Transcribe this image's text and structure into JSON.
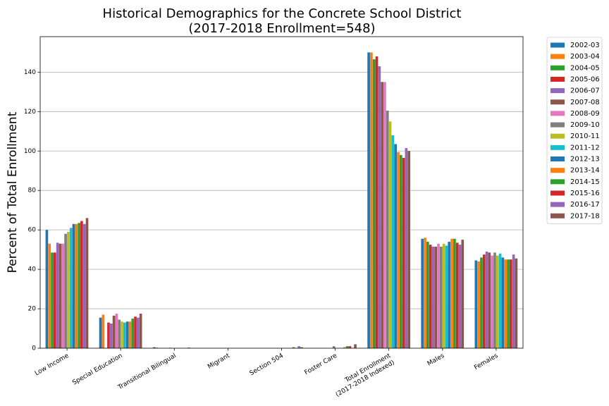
{
  "chart_data": {
    "type": "bar",
    "title": [
      "Historical Demographics for the Concrete School District",
      "(2017-2018 Enrollment=548)"
    ],
    "ylabel": "Percent of Total Enrollment",
    "xlabel": "",
    "ylim": [
      0,
      158
    ],
    "yticks": [
      0,
      20,
      40,
      60,
      80,
      100,
      120,
      140
    ],
    "grid": "y",
    "legend_position": "outside-right",
    "categories": [
      [
        "Low Income"
      ],
      [
        "Special Education"
      ],
      [
        "Transitional Bilingual"
      ],
      [
        "Migrant"
      ],
      [
        "Section 504"
      ],
      [
        "Foster Care"
      ],
      [
        "Total Enrollment",
        "(2017-2018 Indexed)"
      ],
      [
        "Males"
      ],
      [
        "Females"
      ]
    ],
    "series": [
      {
        "name": "2002-03",
        "color": "#1f77b4",
        "values": [
          60,
          15.5,
          0.5,
          0,
          0,
          0,
          150,
          55.5,
          44.5
        ]
      },
      {
        "name": "2003-04",
        "color": "#ff7f0e",
        "values": [
          53,
          17,
          0.3,
          0,
          0,
          0,
          150,
          56,
          44
        ]
      },
      {
        "name": "2004-05",
        "color": "#2ca02c",
        "values": [
          48.5,
          0,
          0,
          0,
          0,
          0,
          146.5,
          54,
          46
        ]
      },
      {
        "name": "2005-06",
        "color": "#d62728",
        "values": [
          48.5,
          13,
          0,
          0,
          0,
          0,
          148,
          52.5,
          47.5
        ]
      },
      {
        "name": "2006-07",
        "color": "#9467bd",
        "values": [
          53.5,
          12.5,
          0,
          0,
          0,
          0,
          143,
          51.5,
          49
        ]
      },
      {
        "name": "2007-08",
        "color": "#8c564b",
        "values": [
          53,
          16.5,
          0,
          0,
          0,
          0,
          135,
          51.5,
          48.5
        ]
      },
      {
        "name": "2008-09",
        "color": "#e377c2",
        "values": [
          53,
          17.5,
          0.3,
          0,
          0,
          0,
          135,
          53,
          47
        ]
      },
      {
        "name": "2009-10",
        "color": "#7f7f7f",
        "values": [
          58,
          14.5,
          0,
          0,
          0,
          1,
          120.5,
          51.5,
          48.5
        ]
      },
      {
        "name": "2010-11",
        "color": "#bcbd22",
        "values": [
          59,
          13.5,
          0,
          0,
          0,
          0,
          115,
          53,
          47
        ]
      },
      {
        "name": "2011-12",
        "color": "#17becf",
        "values": [
          61,
          13,
          0,
          0,
          0,
          0,
          108,
          52,
          48
        ]
      },
      {
        "name": "2012-13",
        "color": "#1f77b4",
        "values": [
          63,
          13.5,
          0,
          0,
          0,
          0,
          103.5,
          54,
          46
        ]
      },
      {
        "name": "2013-14",
        "color": "#ff7f0e",
        "values": [
          63,
          13.5,
          0,
          0,
          0,
          0.5,
          99.5,
          55.5,
          45
        ]
      },
      {
        "name": "2014-15",
        "color": "#2ca02c",
        "values": [
          63.5,
          15,
          0,
          0,
          0.5,
          1,
          98,
          55.5,
          45
        ]
      },
      {
        "name": "2015-16",
        "color": "#d62728",
        "values": [
          64.5,
          16,
          0.3,
          0,
          0,
          1,
          96.5,
          53.5,
          45
        ]
      },
      {
        "name": "2016-17",
        "color": "#9467bd",
        "values": [
          63,
          15.5,
          0,
          0,
          1,
          0,
          101.5,
          52.5,
          47.5
        ]
      },
      {
        "name": "2017-18",
        "color": "#8c564b",
        "values": [
          66,
          17.5,
          0,
          0,
          0.5,
          2,
          100,
          55,
          45.5
        ]
      }
    ]
  }
}
